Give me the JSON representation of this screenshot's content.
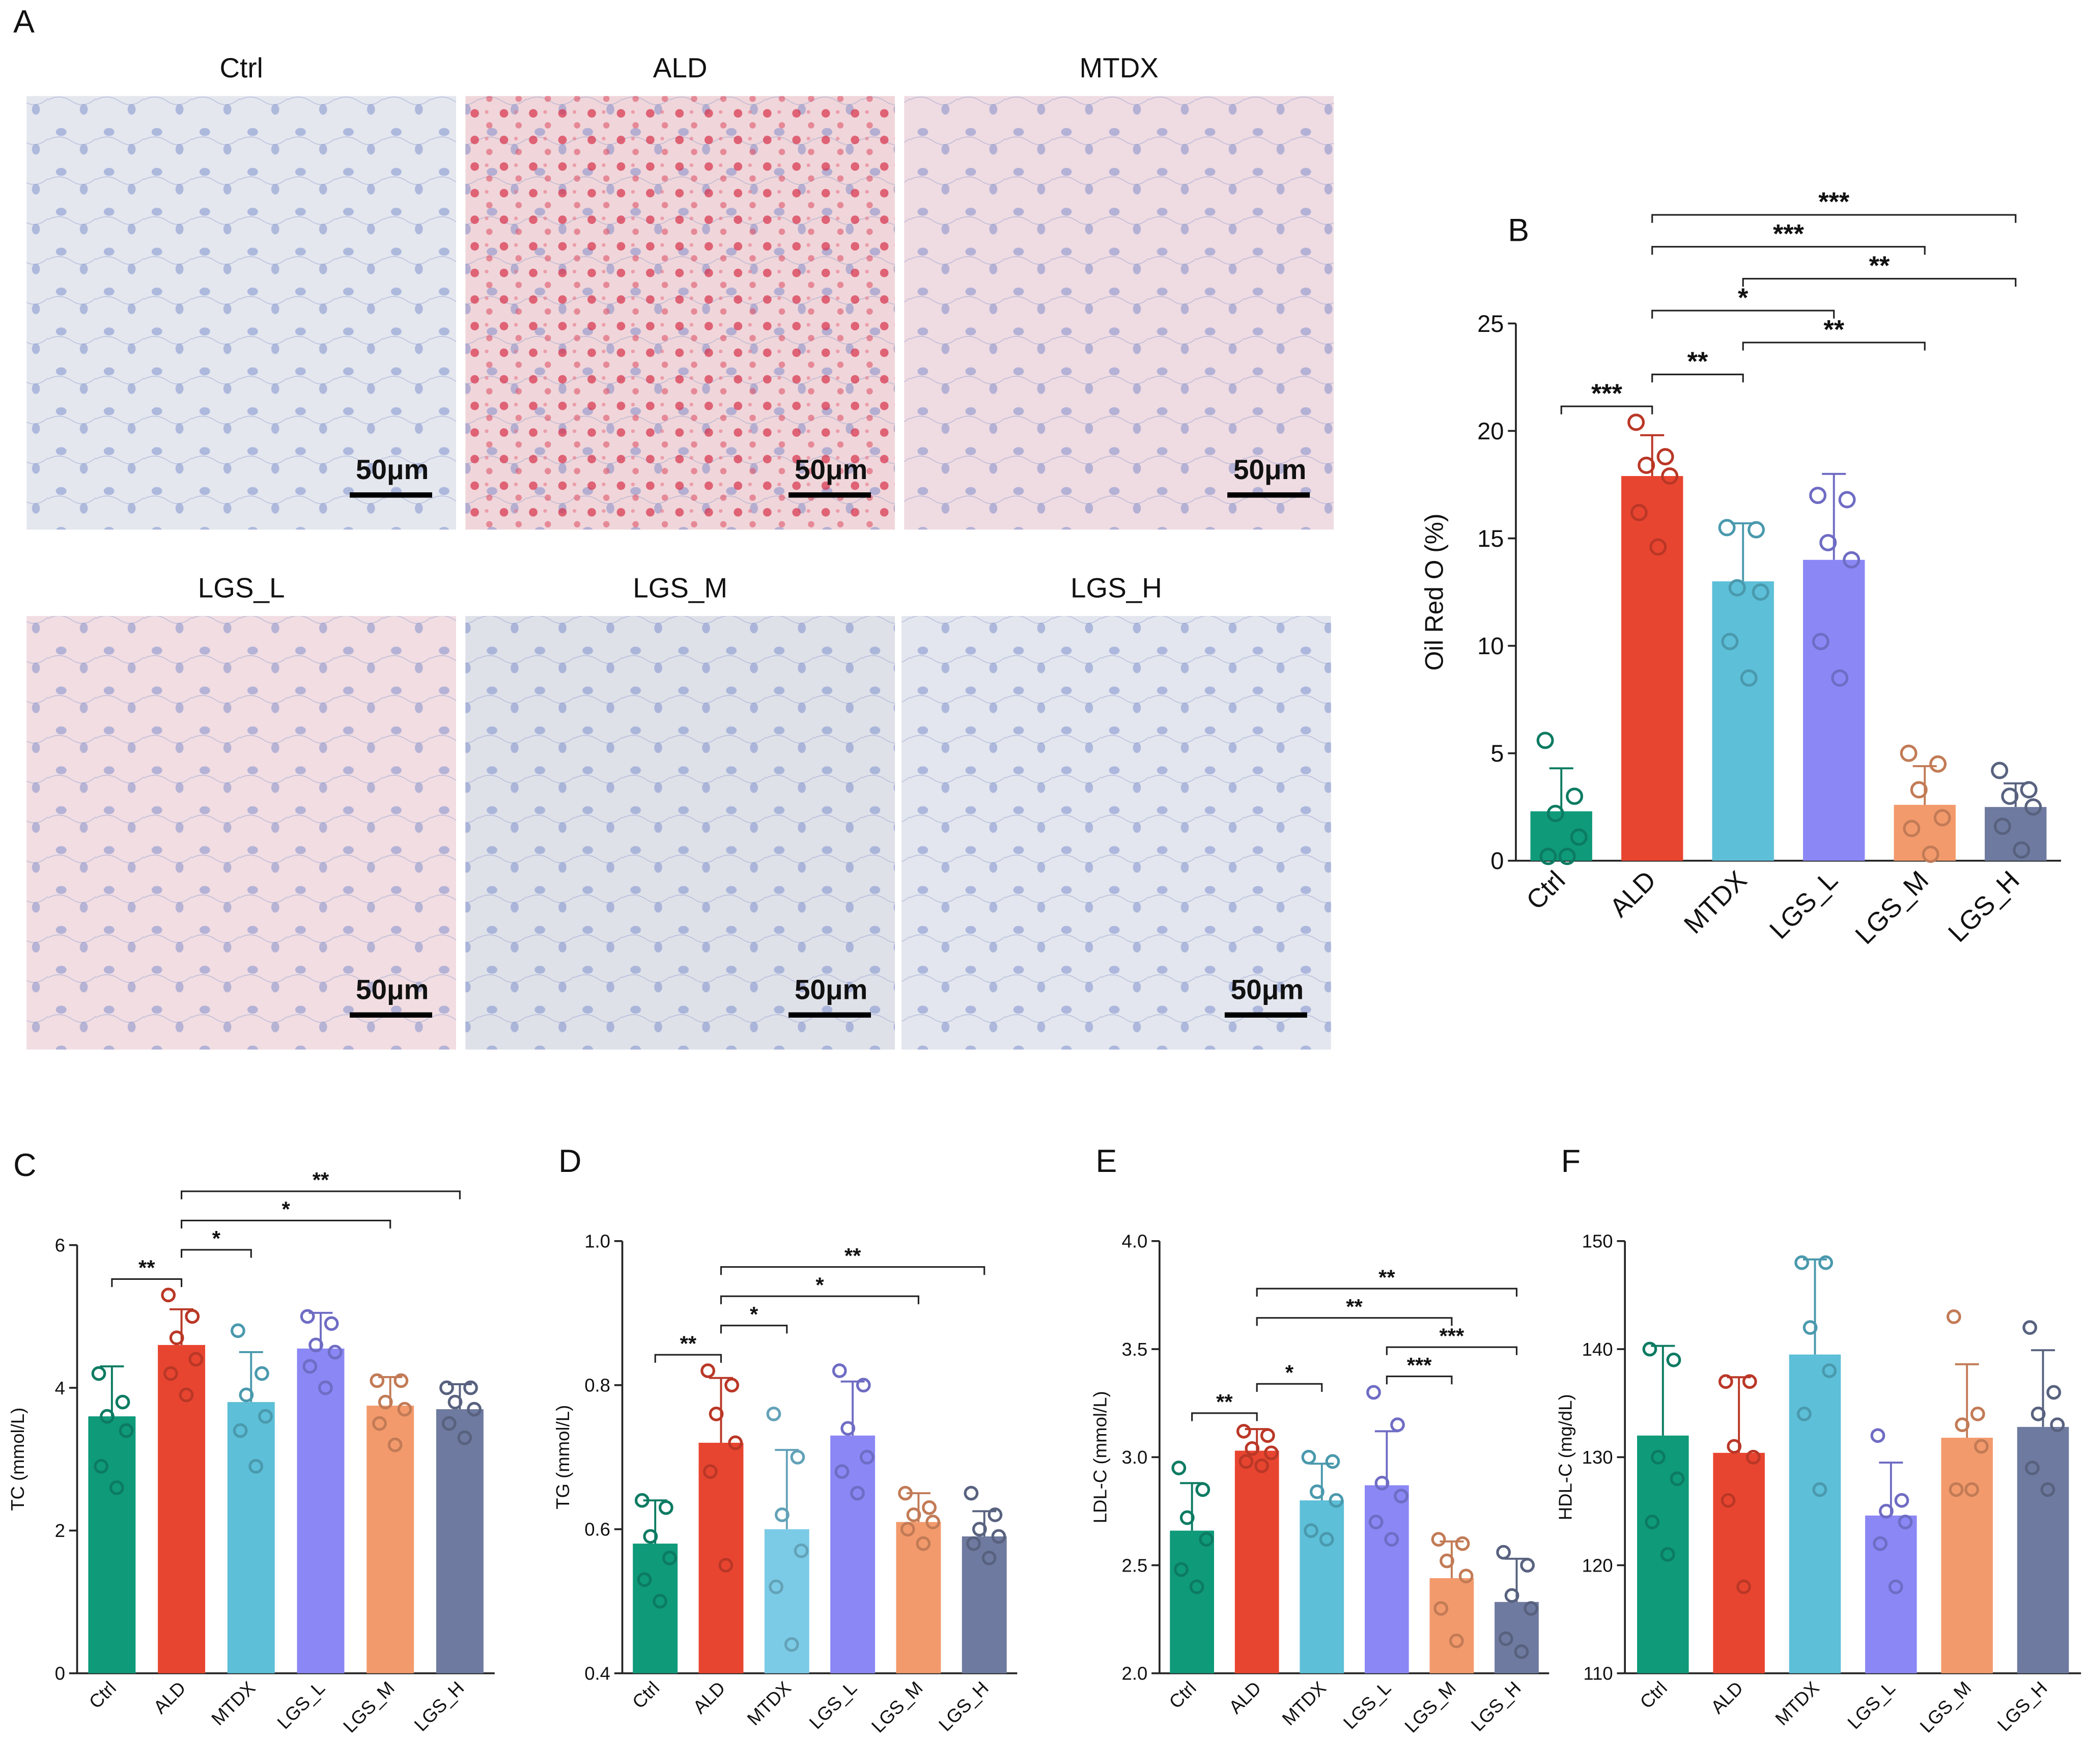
{
  "panel_a": {
    "letter": "A",
    "scale_bar": "50μm",
    "images": [
      {
        "label": "Ctrl",
        "color": "#e4e7ee"
      },
      {
        "label": "ALD",
        "color": "#f0d6da"
      },
      {
        "label": "MTDX",
        "color": "#efdbe2"
      },
      {
        "label": "LGS_L",
        "color": "#f1dde2"
      },
      {
        "label": "LGS_M",
        "color": "#dfe1e9"
      },
      {
        "label": "LGS_H",
        "color": "#e3e6ee"
      }
    ]
  },
  "chart_data": [
    {
      "type": "bar",
      "panel": "B",
      "ylabel": "Oil Red O (%)",
      "categories": [
        "Ctrl",
        "ALD",
        "MTDX",
        "LGS_L",
        "LGS_M",
        "LGS_H"
      ],
      "colors": [
        "#0f9a7a",
        "#e84530",
        "#5dbfd8",
        "#8b87f5",
        "#f39a6c",
        "#6e7a9f"
      ],
      "values": [
        2.3,
        17.9,
        13.0,
        14.0,
        2.6,
        2.5
      ],
      "errors": [
        2.0,
        1.9,
        2.7,
        4.0,
        1.8,
        1.1
      ],
      "points": [
        [
          5.6,
          3.0,
          2.2,
          1.1,
          0.2,
          0.2
        ],
        [
          20.4,
          18.8,
          18.4,
          17.9,
          16.2,
          14.6
        ],
        [
          15.5,
          15.4,
          12.7,
          12.5,
          10.2,
          8.5
        ],
        [
          17.0,
          16.8,
          14.8,
          14.0,
          10.2,
          8.5
        ],
        [
          5.0,
          4.5,
          3.3,
          2.0,
          1.5,
          0.3
        ],
        [
          4.2,
          3.3,
          3.0,
          2.5,
          1.6,
          0.5
        ]
      ],
      "ylim": [
        0,
        25
      ],
      "yticks": [
        0,
        5,
        10,
        15,
        20,
        25
      ],
      "comparisons": [
        {
          "label": "***",
          "groups": [
            "Ctrl",
            "ALD"
          ]
        },
        {
          "label": "**",
          "groups": [
            "ALD",
            "MTDX"
          ]
        },
        {
          "label": "**",
          "groups": [
            "MTDX",
            "LGS_M"
          ]
        },
        {
          "label": "*",
          "groups": [
            "ALD",
            "LGS_L"
          ]
        },
        {
          "label": "**",
          "groups": [
            "MTDX",
            "LGS_H"
          ]
        },
        {
          "label": "***",
          "groups": [
            "ALD",
            "LGS_M"
          ]
        },
        {
          "label": "***",
          "groups": [
            "ALD",
            "LGS_H"
          ]
        }
      ]
    },
    {
      "type": "bar",
      "panel": "C",
      "ylabel": "TC (mmol/L)",
      "categories": [
        "Ctrl",
        "ALD",
        "MTDX",
        "LGS_L",
        "LGS_M",
        "LGS_H"
      ],
      "colors": [
        "#0f9a7a",
        "#e84530",
        "#5dbfd8",
        "#8b87f5",
        "#f39a6c",
        "#6e7a9f"
      ],
      "values": [
        3.6,
        4.6,
        3.8,
        4.55,
        3.75,
        3.7
      ],
      "errors": [
        0.7,
        0.5,
        0.7,
        0.5,
        0.4,
        0.35
      ],
      "points": [
        [
          4.2,
          3.8,
          3.6,
          3.4,
          2.9,
          2.6
        ],
        [
          5.3,
          5.0,
          4.7,
          4.4,
          4.2,
          3.9
        ],
        [
          4.8,
          4.2,
          3.9,
          3.6,
          3.4,
          2.9
        ],
        [
          5.0,
          4.9,
          4.6,
          4.5,
          4.3,
          4.0
        ],
        [
          4.1,
          4.1,
          3.8,
          3.7,
          3.5,
          3.2
        ],
        [
          4.0,
          4.0,
          3.8,
          3.7,
          3.5,
          3.3
        ]
      ],
      "ylim": [
        0,
        6
      ],
      "yticks": [
        0,
        2,
        4,
        6
      ],
      "comparisons": [
        {
          "label": "**",
          "groups": [
            "Ctrl",
            "ALD"
          ]
        },
        {
          "label": "*",
          "groups": [
            "ALD",
            "MTDX"
          ]
        },
        {
          "label": "*",
          "groups": [
            "ALD",
            "LGS_M"
          ]
        },
        {
          "label": "**",
          "groups": [
            "ALD",
            "LGS_H"
          ]
        }
      ]
    },
    {
      "type": "bar",
      "panel": "D",
      "ylabel": "TG (mmol/L)",
      "categories": [
        "Ctrl",
        "ALD",
        "MTDX",
        "LGS_L",
        "LGS_M",
        "LGS_H"
      ],
      "colors": [
        "#0f9a7a",
        "#e84530",
        "#7ccbe6",
        "#8b87f5",
        "#f39a6c",
        "#6e7a9f"
      ],
      "values": [
        0.58,
        0.72,
        0.6,
        0.73,
        0.61,
        0.59
      ],
      "errors": [
        0.06,
        0.09,
        0.11,
        0.075,
        0.04,
        0.035
      ],
      "points": [
        [
          0.64,
          0.63,
          0.59,
          0.56,
          0.53,
          0.5
        ],
        [
          0.82,
          0.8,
          0.76,
          0.72,
          0.68,
          0.55
        ],
        [
          0.76,
          0.7,
          0.62,
          0.57,
          0.52,
          0.44
        ],
        [
          0.82,
          0.8,
          0.74,
          0.7,
          0.68,
          0.65
        ],
        [
          0.65,
          0.63,
          0.62,
          0.61,
          0.6,
          0.58
        ],
        [
          0.65,
          0.62,
          0.6,
          0.59,
          0.58,
          0.56
        ]
      ],
      "ylim": [
        0.4,
        1
      ],
      "yticks": [
        0.4,
        0.6,
        0.8,
        {
          "value": 1,
          "label": "1.0"
        }
      ],
      "comparisons": [
        {
          "label": "**",
          "groups": [
            "Ctrl",
            "ALD"
          ]
        },
        {
          "label": "*",
          "groups": [
            "ALD",
            "MTDX"
          ]
        },
        {
          "label": "*",
          "groups": [
            "ALD",
            "LGS_M"
          ]
        },
        {
          "label": "**",
          "groups": [
            "ALD",
            "LGS_H"
          ]
        }
      ]
    },
    {
      "type": "bar",
      "panel": "E",
      "ylabel": "LDL-C (mmol/L)",
      "categories": [
        "Ctrl",
        "ALD",
        "MTDX",
        "LGS_L",
        "LGS_M",
        "LGS_H"
      ],
      "colors": [
        "#0f9a7a",
        "#e84530",
        "#5dbfd8",
        "#8b87f5",
        "#f39a6c",
        "#6e7a9f"
      ],
      "values": [
        2.66,
        3.03,
        2.8,
        2.87,
        2.44,
        2.33
      ],
      "errors": [
        0.22,
        0.1,
        0.17,
        0.25,
        0.17,
        0.2
      ],
      "points": [
        [
          2.95,
          2.85,
          2.72,
          2.62,
          2.48,
          2.4
        ],
        [
          3.12,
          3.1,
          3.04,
          3.02,
          2.98,
          2.96
        ],
        [
          3.0,
          2.98,
          2.84,
          2.8,
          2.66,
          2.62
        ],
        [
          3.3,
          3.15,
          2.88,
          2.82,
          2.7,
          2.62
        ],
        [
          2.62,
          2.6,
          2.52,
          2.45,
          2.3,
          2.15
        ],
        [
          2.56,
          2.5,
          2.36,
          2.3,
          2.16,
          2.1
        ]
      ],
      "ylim": [
        2,
        4
      ],
      "yticks": [
        {
          "value": 2,
          "label": "2.0"
        },
        2.5,
        {
          "value": 3,
          "label": "3.0"
        },
        3.5,
        {
          "value": 4,
          "label": "4.0"
        }
      ],
      "comparisons": [
        {
          "label": "**",
          "groups": [
            "Ctrl",
            "ALD"
          ]
        },
        {
          "label": "*",
          "groups": [
            "ALD",
            "MTDX"
          ]
        },
        {
          "label": "***",
          "groups": [
            "LGS_L",
            "LGS_M"
          ]
        },
        {
          "label": "***",
          "groups": [
            "LGS_L",
            "LGS_H"
          ]
        },
        {
          "label": "**",
          "groups": [
            "ALD",
            "LGS_M"
          ]
        },
        {
          "label": "**",
          "groups": [
            "ALD",
            "LGS_H"
          ]
        }
      ]
    },
    {
      "type": "bar",
      "panel": "F",
      "ylabel": "HDL-C (mg/dL)",
      "categories": [
        "Ctrl",
        "ALD",
        "MTDX",
        "LGS_L",
        "LGS_M",
        "LGS_H"
      ],
      "colors": [
        "#0f9a7a",
        "#e84530",
        "#5dbfd8",
        "#8b87f5",
        "#f39a6c",
        "#6e7a9f"
      ],
      "values": [
        132,
        130.4,
        139.5,
        124.6,
        131.8,
        132.8
      ],
      "errors": [
        8.3,
        7,
        8.8,
        4.9,
        6.8,
        7.1
      ],
      "points": [
        [
          140,
          139,
          130,
          128,
          124,
          121
        ],
        [
          137,
          137,
          131,
          130,
          126,
          118
        ],
        [
          148,
          148,
          142,
          138,
          134,
          127
        ],
        [
          132,
          126,
          125,
          124,
          122,
          118
        ],
        [
          143,
          134,
          133,
          131,
          127,
          127
        ],
        [
          142,
          136,
          134,
          133,
          129,
          127
        ]
      ],
      "ylim": [
        110,
        150
      ],
      "yticks": [
        110,
        120,
        130,
        140,
        150
      ],
      "comparisons": []
    }
  ]
}
